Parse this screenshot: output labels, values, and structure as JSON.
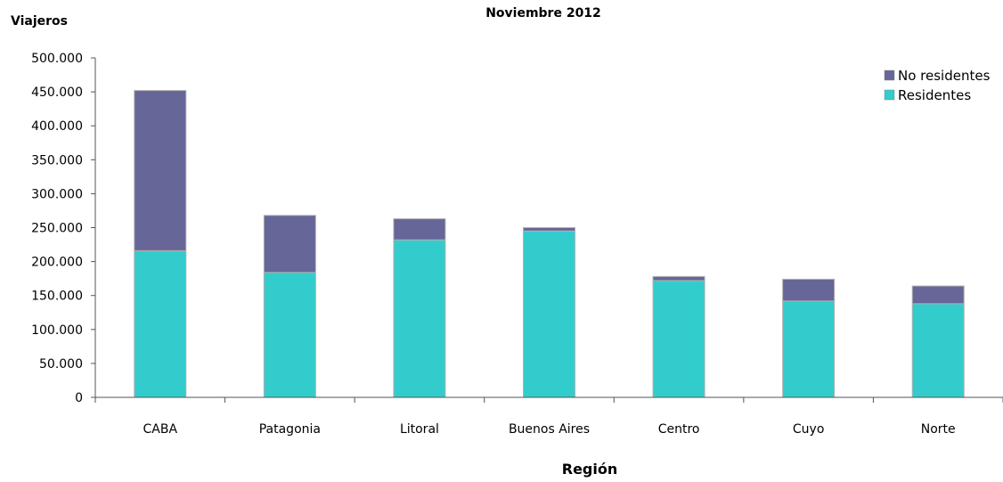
{
  "chart_data": {
    "type": "bar",
    "stacked": true,
    "title": "Noviembre 2012",
    "ylabel": "Viajeros",
    "xlabel": "Región",
    "categories": [
      "CABA",
      "Patagonia",
      "Litoral",
      "Buenos Aires",
      "Centro",
      "Cuyo",
      "Norte"
    ],
    "series": [
      {
        "name": "Residentes",
        "color": "#33CCCC",
        "values": [
          216000,
          184000,
          232000,
          245000,
          172000,
          142000,
          138000
        ]
      },
      {
        "name": "No residentes",
        "color": "#666699",
        "values": [
          236000,
          84000,
          31000,
          5000,
          6000,
          32000,
          26000
        ]
      }
    ],
    "ylim": [
      0,
      500000
    ],
    "yticks": [
      0,
      50000,
      100000,
      150000,
      200000,
      250000,
      300000,
      350000,
      400000,
      450000,
      500000
    ],
    "ytick_labels": [
      "0",
      "50.000",
      "100.000",
      "150.000",
      "200.000",
      "250.000",
      "300.000",
      "350.000",
      "400.000",
      "450.000",
      "500.000"
    ],
    "grid": false,
    "legend_position": "top-right",
    "legend_order": [
      "No residentes",
      "Residentes"
    ]
  }
}
